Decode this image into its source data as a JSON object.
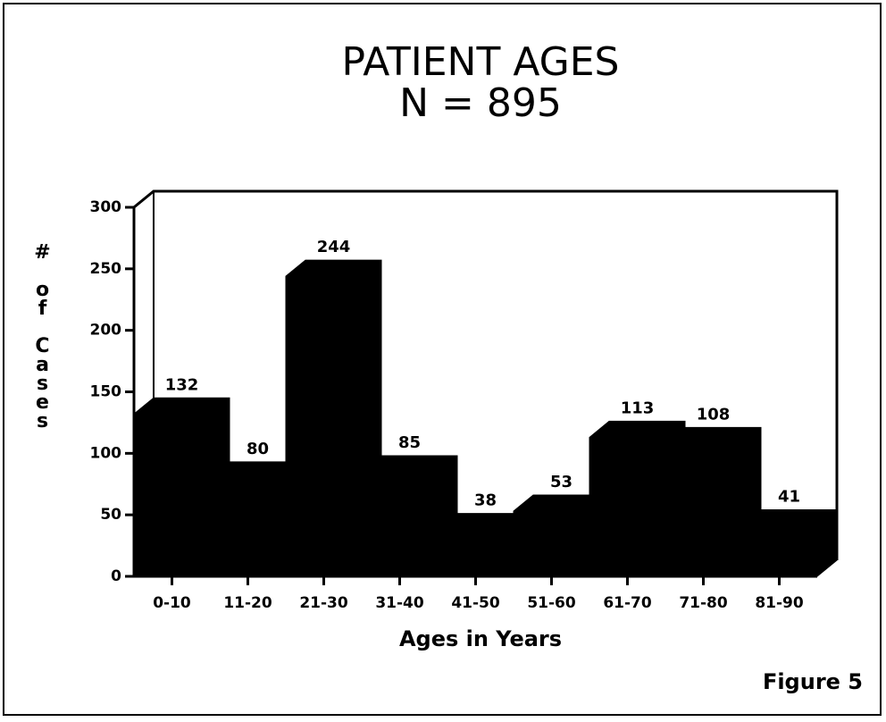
{
  "chart_data": {
    "type": "bar",
    "title": "PATIENT AGES",
    "subtitle": "N = 895",
    "y_label": "# of Cases",
    "x_label": "Ages in Years",
    "annotation": "Figure 5",
    "categories": [
      "0-10",
      "11-20",
      "21-30",
      "31-40",
      "41-50",
      "51-60",
      "61-70",
      "71-80",
      "81-90"
    ],
    "values": [
      132,
      80,
      244,
      85,
      38,
      53,
      113,
      108,
      41
    ],
    "color": "#000000",
    "ylim": [
      0,
      300
    ],
    "yticks": [
      0,
      50,
      100,
      150,
      200,
      250,
      300
    ],
    "grid": false
  }
}
